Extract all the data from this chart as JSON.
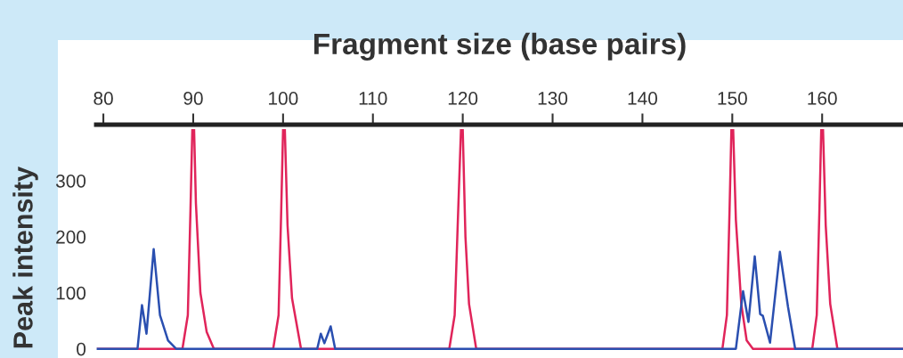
{
  "chart_data": {
    "type": "line",
    "xlabel": "Fragment size (base pairs)",
    "ylabel": "Peak intensity",
    "xlim": [
      79.2,
      169
    ],
    "xticks": [
      80,
      90,
      100,
      110,
      120,
      130,
      140,
      150,
      160
    ],
    "ylim": [
      -10,
      400
    ],
    "yticks": [
      0,
      100,
      200,
      300
    ],
    "grid": false,
    "marker": "none",
    "line_style": "solid",
    "series": [
      {
        "color": "#e0245a",
        "x": [
          79.2,
          88.8,
          89.4,
          89.7,
          89.9,
          90.0,
          90.1,
          90.3,
          90.8,
          91.5,
          92.3,
          98.9,
          99.5,
          99.8,
          100.0,
          100.1,
          100.2,
          100.5,
          101.0,
          102.0,
          118.5,
          119.1,
          119.5,
          119.8,
          119.9,
          120.0,
          120.3,
          120.7,
          121.5,
          148.9,
          149.4,
          149.7,
          149.9,
          150.0,
          150.1,
          150.4,
          151.0,
          151.6,
          152.3,
          155.5,
          158.9,
          159.4,
          159.7,
          159.9,
          160.0,
          160.1,
          160.4,
          160.9,
          161.7,
          169
        ],
        "values": [
          0,
          0,
          60,
          250,
          390,
          null,
          390,
          260,
          100,
          30,
          0,
          0,
          60,
          250,
          390,
          null,
          390,
          220,
          90,
          0,
          0,
          60,
          250,
          390,
          null,
          390,
          200,
          80,
          0,
          0,
          60,
          250,
          390,
          null,
          390,
          230,
          80,
          15,
          0,
          0,
          0,
          60,
          250,
          390,
          null,
          390,
          220,
          80,
          0,
          0
        ]
      },
      {
        "color": "#2a4fb0",
        "x": [
          79.2,
          83.8,
          84.3,
          84.8,
          85.6,
          86.3,
          87.2,
          88.1,
          103.8,
          104.2,
          104.6,
          105.3,
          105.8,
          150.4,
          151.2,
          151.8,
          152.5,
          153.1,
          153.4,
          154.2,
          155.3,
          156.2,
          157.0,
          169
        ],
        "values": [
          0,
          0,
          78,
          27,
          178,
          60,
          15,
          0,
          0,
          27,
          10,
          40,
          0,
          0,
          103,
          48,
          165,
          62,
          59,
          11,
          173,
          75,
          0,
          0
        ]
      }
    ]
  }
}
